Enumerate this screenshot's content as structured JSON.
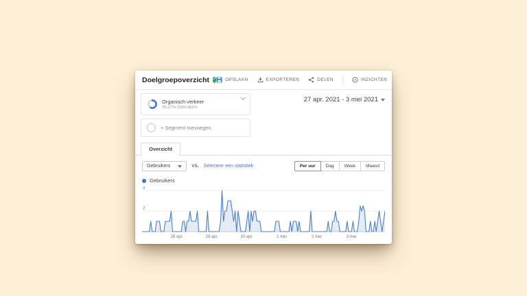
{
  "header": {
    "title": "Doelgroepoverzicht",
    "badge": "verified-check",
    "actions": [
      {
        "label": "OPSLAAN",
        "icon": "save-icon"
      },
      {
        "label": "EXPORTEREN",
        "icon": "download-icon"
      },
      {
        "label": "DELEN",
        "icon": "share-icon"
      },
      {
        "label": "INZICHTEN",
        "icon": "insights-icon"
      }
    ]
  },
  "segments": {
    "active": {
      "name": "Organisch verkeer",
      "detail": "36,27% Gebruikers",
      "percent": 36.27
    },
    "add_label": "+ Segment toevoegen"
  },
  "date_range": "27 apr. 2021 - 3 mei 2021",
  "tabs": [
    {
      "label": "Overzicht",
      "active": true
    }
  ],
  "controls": {
    "metric_selector": "Gebruikers",
    "vs_label": "VS.",
    "select_metric_label": "Selecteer een statistiek",
    "granularity": [
      {
        "label": "Per uur",
        "active": true
      },
      {
        "label": "Dag",
        "active": false
      },
      {
        "label": "Week",
        "active": false
      },
      {
        "label": "Maand",
        "active": false
      }
    ]
  },
  "legend": {
    "label": "Gebruikers",
    "color": "#3f74c9"
  },
  "colors": {
    "page_background": "#fdeed6",
    "accent_blue": "#3b78e7",
    "badge_green": "#2e9e4f",
    "link_blue": "#4674d9"
  },
  "chart_data": {
    "type": "area",
    "title": "Gebruikers per uur",
    "metric": "Gebruikers",
    "granularity": "hourly",
    "date_range": "27 apr. 2021 - 3 mei 2021",
    "x_tick_labels": [
      "28 apr.",
      "29 apr.",
      "30 apr.",
      "1 mei",
      "2 mei",
      "3 mei"
    ],
    "x_tick_hours": [
      24,
      48,
      72,
      96,
      120,
      144
    ],
    "y_ticks": [
      2,
      4
    ],
    "ylim": [
      0,
      4.3
    ],
    "grid": true,
    "legend_position": "top-left",
    "line_color": "#4c7fc4",
    "fill_color": "#e3ecf8",
    "grid_color": "#ececec",
    "axis_color": "#c2c9d6",
    "series": [
      {
        "name": "Gebruikers",
        "values": [
          0,
          0,
          0,
          0,
          0,
          0,
          1,
          0,
          0,
          0,
          1,
          1,
          1,
          0,
          0,
          0,
          1,
          1,
          1,
          1,
          2,
          0,
          0,
          0,
          0,
          0,
          0,
          0,
          1,
          1,
          0,
          1,
          1,
          2,
          1,
          1,
          1,
          1,
          2,
          0,
          0,
          0,
          0,
          0,
          0,
          2,
          0,
          0,
          0,
          0,
          0,
          0,
          0,
          0,
          1,
          4,
          1,
          2,
          2,
          3,
          3,
          3,
          2,
          1,
          2,
          0,
          2,
          1,
          0,
          0,
          0,
          0,
          1,
          2,
          0,
          2,
          1,
          2,
          2,
          1,
          1,
          1,
          0,
          0,
          0,
          0,
          0,
          0,
          0,
          0,
          0,
          0,
          1,
          1,
          1,
          0,
          0,
          0,
          0,
          0,
          0,
          0,
          1,
          0,
          1,
          1,
          1,
          0,
          1,
          0,
          0,
          0,
          0,
          0,
          0,
          0,
          2,
          0,
          0,
          0,
          0,
          0,
          0,
          0,
          0,
          0,
          0,
          0,
          1,
          0,
          0,
          1,
          1,
          2,
          1,
          1,
          0,
          0,
          0,
          0,
          0,
          1,
          0,
          0,
          0,
          1,
          0,
          0,
          0,
          1,
          2.5,
          2,
          2.5,
          2,
          0,
          0,
          0,
          1,
          0,
          0,
          1,
          0,
          1,
          2,
          1,
          0,
          1,
          2
        ]
      }
    ]
  }
}
